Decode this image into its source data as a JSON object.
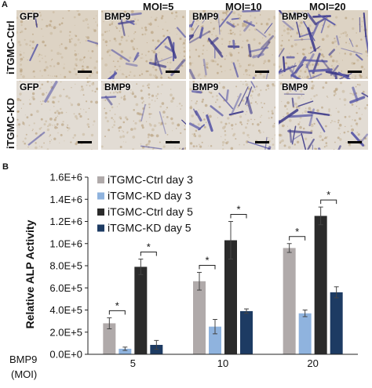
{
  "panel_a": {
    "letter": "A",
    "moi_headers": [
      "MOI=5",
      "MOI=10",
      "MOI=20"
    ],
    "rows": [
      {
        "label": "iTGMC-Ctrl",
        "tiles": [
          "GFP",
          "BMP9",
          "BMP9",
          "BMP9"
        ],
        "stain": [
          0.05,
          0.35,
          0.55,
          0.8
        ]
      },
      {
        "label": "iTGMC-KD",
        "tiles": [
          "GFP",
          "BMP9",
          "BMP9",
          "BMP9"
        ],
        "stain": [
          0.03,
          0.12,
          0.3,
          0.4
        ]
      }
    ]
  },
  "panel_b": {
    "letter": "B",
    "x_header": "BMP9",
    "x_header_unit": "(MOI)",
    "significance_marker": "*"
  },
  "chart_data": {
    "type": "bar",
    "ylabel": "Relative ALP Activity",
    "ylim": [
      0,
      1600000
    ],
    "yticks": [
      "0.0E+0",
      "2.0E+5",
      "4.0E+5",
      "6.0E+5",
      "8.0E+5",
      "1.0E+6",
      "1.2E+6",
      "1.4E+6",
      "1.6E+6"
    ],
    "categories": [
      "5",
      "10",
      "20"
    ],
    "legend_position": "top-left",
    "series": [
      {
        "name": "iTGMC-Ctrl day 3",
        "color": "#b0aaaa",
        "values": [
          280000,
          660000,
          960000
        ],
        "errors": [
          50000,
          80000,
          40000
        ]
      },
      {
        "name": "iTGMC-KD day 3",
        "color": "#8fb3de",
        "values": [
          50000,
          250000,
          370000
        ],
        "errors": [
          15000,
          65000,
          30000
        ]
      },
      {
        "name": "iTGMC-Ctrl day 5",
        "color": "#2b2b2b",
        "values": [
          790000,
          1030000,
          1250000
        ],
        "errors": [
          70000,
          170000,
          80000
        ]
      },
      {
        "name": "iTGMC-KD day 5",
        "color": "#1d3b63",
        "values": [
          85000,
          390000,
          560000
        ],
        "errors": [
          40000,
          20000,
          50000
        ]
      }
    ],
    "significance": [
      {
        "category": 0,
        "from_series": 0,
        "to_series": 1,
        "label": "*"
      },
      {
        "category": 0,
        "from_series": 2,
        "to_series": 3,
        "label": "*"
      },
      {
        "category": 1,
        "from_series": 0,
        "to_series": 1,
        "label": "*"
      },
      {
        "category": 1,
        "from_series": 2,
        "to_series": 3,
        "label": "*"
      },
      {
        "category": 2,
        "from_series": 0,
        "to_series": 1,
        "label": "*"
      },
      {
        "category": 2,
        "from_series": 2,
        "to_series": 3,
        "label": "*"
      }
    ]
  }
}
